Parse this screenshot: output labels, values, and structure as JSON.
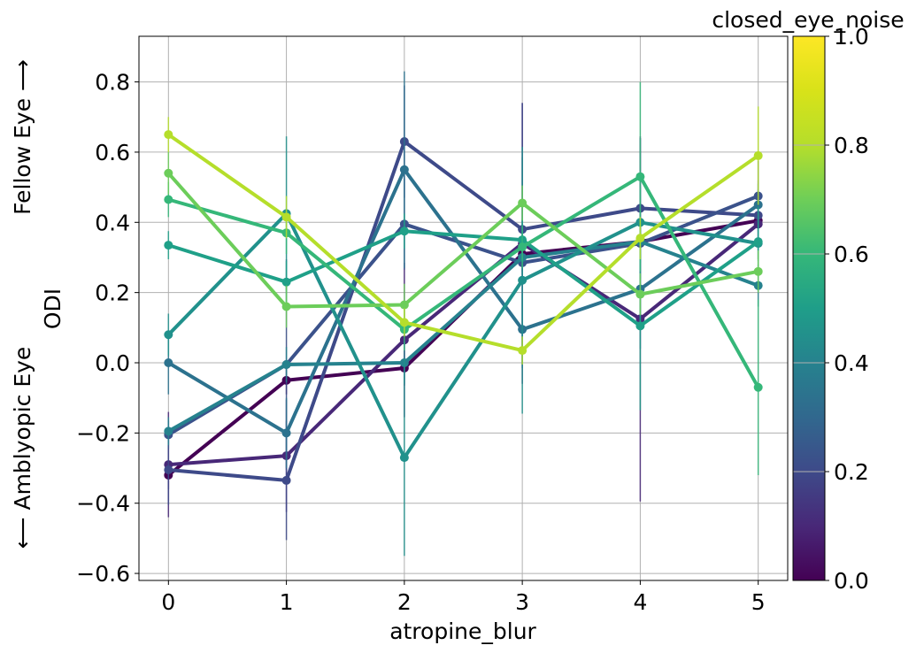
{
  "chart_data": {
    "type": "line",
    "xlabel": "atropine_blur",
    "ylabel": "ODI",
    "side_label_top": "Fellow Eye ⟶",
    "side_label_bottom": "⟵ Amblyopic Eye",
    "colorbar_label": "closed_eye_noise",
    "x": [
      0,
      1,
      2,
      3,
      4,
      5
    ],
    "xlim": [
      -0.25,
      5.25
    ],
    "ylim": [
      -0.62,
      0.93
    ],
    "yticks": [
      -0.6,
      -0.4,
      -0.2,
      0.0,
      0.2,
      0.4,
      0.6,
      0.8
    ],
    "ytick_labels": [
      "−0.6",
      "−0.4",
      "−0.2",
      "0.0",
      "0.2",
      "0.4",
      "0.6",
      "0.8"
    ],
    "xtick_labels": [
      "0",
      "1",
      "2",
      "3",
      "4",
      "5"
    ],
    "colorbar_range": [
      0.0,
      1.0
    ],
    "colorbar_ticks": [
      0.0,
      0.2,
      0.4,
      0.6,
      0.8,
      1.0
    ],
    "colorbar_tick_labels": [
      "0.0",
      "0.2",
      "0.4",
      "0.6",
      "0.8",
      "1.0"
    ],
    "colormap": "viridis",
    "grid": true,
    "series": [
      {
        "noise": 0.0,
        "color": "#440154",
        "values": [
          -0.32,
          -0.05,
          -0.015,
          0.31,
          0.345,
          0.405
        ],
        "err": [
          0.04,
          0.04,
          0.05,
          0.05,
          0.05,
          0.05
        ]
      },
      {
        "noise": 0.1,
        "color": "#482878",
        "values": [
          -0.29,
          -0.265,
          0.065,
          0.34,
          0.125,
          0.395
        ],
        "err": [
          0.15,
          0.16,
          0.22,
          0.4,
          0.52,
          0.1
        ]
      },
      {
        "noise": 0.2,
        "color": "#3e4a89",
        "values": [
          -0.305,
          -0.335,
          0.63,
          0.38,
          0.44,
          0.42
        ],
        "err": [
          0.1,
          0.17,
          0.16,
          0.36,
          0.2,
          0.1
        ]
      },
      {
        "noise": 0.25,
        "color": "#3b528b",
        "values": [
          -0.205,
          -0.005,
          0.395,
          0.285,
          0.34,
          0.475
        ],
        "err": [
          0.04,
          0.3,
          0.13,
          0.3,
          0.3,
          0.1
        ]
      },
      {
        "noise": 0.35,
        "color": "#2c728e",
        "values": [
          0.0,
          -0.2,
          0.55,
          0.095,
          0.21,
          0.45
        ],
        "err": [
          0.09,
          0.1,
          0.28,
          0.1,
          0.1,
          0.06
        ]
      },
      {
        "noise": 0.4,
        "color": "#26828e",
        "values": [
          -0.195,
          -0.005,
          0.0,
          0.3,
          0.345,
          0.22
        ],
        "err": [
          0.04,
          0.05,
          0.06,
          0.05,
          0.06,
          0.06
        ]
      },
      {
        "noise": 0.5,
        "color": "#21918c",
        "values": [
          0.08,
          0.425,
          -0.27,
          0.235,
          0.4,
          0.34
        ],
        "err": [
          0.06,
          0.22,
          0.28,
          0.38,
          0.1,
          0.05
        ]
      },
      {
        "noise": 0.55,
        "color": "#1fa088",
        "values": [
          0.335,
          0.23,
          0.375,
          0.35,
          0.105,
          0.345
        ],
        "err": [
          0.04,
          0.06,
          0.05,
          0.06,
          0.24,
          0.1
        ]
      },
      {
        "noise": 0.7,
        "color": "#35b779",
        "values": [
          0.465,
          0.37,
          0.095,
          0.33,
          0.53,
          -0.07
        ],
        "err": [
          0.05,
          0.06,
          0.06,
          0.06,
          0.27,
          0.25
        ]
      },
      {
        "noise": 0.75,
        "color": "#6ccd5a",
        "values": [
          0.54,
          0.16,
          0.165,
          0.455,
          0.195,
          0.26
        ],
        "err": [
          0.06,
          0.06,
          0.06,
          0.05,
          0.06,
          0.06
        ]
      },
      {
        "noise": 0.9,
        "color": "#b5de2b",
        "values": [
          0.65,
          0.415,
          0.115,
          0.035,
          0.355,
          0.59
        ],
        "err": [
          0.05,
          0.06,
          0.04,
          0.04,
          0.06,
          0.14
        ]
      }
    ]
  }
}
